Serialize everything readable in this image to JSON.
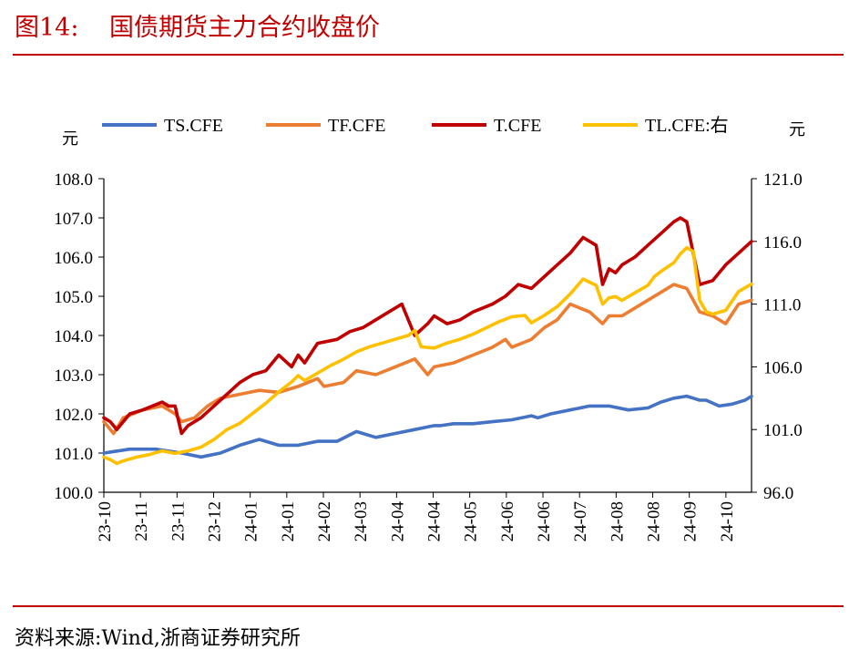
{
  "header": {
    "figure_number": "图14:",
    "title": "国债期货主力合约收盘价"
  },
  "footer": {
    "source": "资料来源:Wind,浙商证券研究所"
  },
  "colors": {
    "title_red": "#c00000",
    "TS": "#4472c4",
    "TF": "#ed7d31",
    "T": "#c00000",
    "TL": "#ffc000"
  },
  "chart_data": {
    "type": "line",
    "left_unit": "元",
    "right_unit": "元",
    "left_axis": {
      "ylim": [
        100.0,
        108.0
      ],
      "ticks": [
        "100.0",
        "101.0",
        "102.0",
        "103.0",
        "104.0",
        "105.0",
        "106.0",
        "107.0",
        "108.0"
      ]
    },
    "right_axis": {
      "ylim": [
        96.0,
        121.0
      ],
      "ticks": [
        "96.0",
        "101.0",
        "106.0",
        "111.0",
        "116.0",
        "121.0"
      ]
    },
    "x_tick_labels": [
      "23-10",
      "23-11",
      "23-11",
      "23-12",
      "24-01",
      "24-01",
      "24-02",
      "24-03",
      "24-04",
      "24-04",
      "24-05",
      "24-06",
      "24-06",
      "24-07",
      "24-08",
      "24-08",
      "24-09",
      "24-10"
    ],
    "legend": {
      "placement": "top",
      "entries": [
        "TS.CFE",
        "TF.CFE",
        "T.CFE",
        "TL.CFE:右"
      ]
    },
    "x_range": [
      0,
      100
    ],
    "series": [
      {
        "name": "TS.CFE",
        "key": "TS",
        "axis": "left",
        "x": [
          0,
          4,
          8,
          12,
          15,
          18,
          21,
          24,
          27,
          30,
          33,
          36,
          39,
          42,
          45,
          48,
          51,
          52,
          54,
          57,
          60,
          63,
          66,
          67,
          69,
          72,
          75,
          78,
          81,
          84,
          86,
          88,
          90,
          92,
          93,
          95,
          97,
          99,
          100
        ],
        "y": [
          101.0,
          101.1,
          101.1,
          101.0,
          100.9,
          101.0,
          101.2,
          101.35,
          101.2,
          101.2,
          101.3,
          101.3,
          101.55,
          101.4,
          101.5,
          101.6,
          101.7,
          101.7,
          101.75,
          101.75,
          101.8,
          101.85,
          101.95,
          101.9,
          102.0,
          102.1,
          102.2,
          102.2,
          102.1,
          102.15,
          102.3,
          102.4,
          102.45,
          102.35,
          102.35,
          102.2,
          102.25,
          102.35,
          102.45
        ]
      },
      {
        "name": "TF.CFE",
        "key": "TF",
        "axis": "left",
        "x": [
          0,
          1.5,
          3,
          6,
          9,
          11,
          12,
          14,
          16,
          18,
          21,
          24,
          27,
          30,
          33,
          34,
          37,
          39,
          42,
          45,
          48,
          50,
          51,
          54,
          57,
          60,
          62,
          63,
          66,
          68,
          70,
          72,
          75,
          77,
          78,
          80,
          82,
          84,
          86,
          88,
          90,
          92,
          94,
          96,
          98,
          100
        ],
        "y": [
          101.8,
          101.5,
          101.9,
          102.1,
          102.2,
          102.0,
          101.8,
          101.9,
          102.2,
          102.4,
          102.5,
          102.6,
          102.55,
          102.7,
          102.9,
          102.7,
          102.8,
          103.1,
          103.0,
          103.2,
          103.4,
          103.0,
          103.2,
          103.3,
          103.5,
          103.7,
          103.9,
          103.7,
          103.9,
          104.2,
          104.4,
          104.8,
          104.6,
          104.3,
          104.5,
          104.5,
          104.7,
          104.9,
          105.1,
          105.3,
          105.2,
          104.6,
          104.5,
          104.3,
          104.8,
          104.9
        ]
      },
      {
        "name": "T.CFE",
        "key": "T",
        "axis": "left",
        "x": [
          0,
          1,
          2,
          4,
          6,
          9,
          10,
          11,
          12,
          13,
          15,
          17,
          19,
          21,
          23,
          25,
          27,
          29,
          30,
          31,
          33,
          36,
          38,
          40,
          42,
          44,
          46,
          48,
          50,
          51,
          53,
          55,
          57,
          60,
          62,
          64,
          66,
          68,
          70,
          72,
          74,
          76,
          77,
          78,
          79,
          80,
          82,
          84,
          86,
          88,
          89,
          90,
          92,
          94,
          96,
          98,
          100
        ],
        "y": [
          101.9,
          101.8,
          101.6,
          102.0,
          102.1,
          102.3,
          102.2,
          102.2,
          101.5,
          101.7,
          101.9,
          102.2,
          102.5,
          102.8,
          103.0,
          103.1,
          103.5,
          103.2,
          103.5,
          103.3,
          103.8,
          103.9,
          104.1,
          104.2,
          104.4,
          104.6,
          104.8,
          104.0,
          104.3,
          104.5,
          104.3,
          104.4,
          104.6,
          104.8,
          105.0,
          105.3,
          105.2,
          105.5,
          105.8,
          106.1,
          106.5,
          106.3,
          105.3,
          105.7,
          105.6,
          105.8,
          106.0,
          106.3,
          106.6,
          106.9,
          107.0,
          106.9,
          105.3,
          105.4,
          105.8,
          106.1,
          106.4
        ]
      },
      {
        "name": "TL.CFE:右",
        "key": "TL",
        "axis": "right",
        "x": [
          0,
          1,
          2,
          3,
          5,
          7,
          9,
          11,
          13,
          15,
          17,
          18,
          19,
          21,
          23,
          25,
          27,
          29,
          30,
          31,
          33,
          35,
          37,
          39,
          41,
          43,
          45,
          47,
          48,
          49,
          51,
          53,
          55,
          57,
          59,
          61,
          63,
          65,
          66,
          68,
          70,
          72,
          74,
          76,
          77,
          78,
          79,
          80,
          82,
          84,
          85,
          86,
          88,
          89,
          90,
          91,
          92,
          93,
          94,
          96,
          98,
          99,
          100
        ],
        "y": [
          98.8,
          98.6,
          98.3,
          98.5,
          98.8,
          99.0,
          99.3,
          99.1,
          99.3,
          99.6,
          100.2,
          100.6,
          101.0,
          101.5,
          102.3,
          103.1,
          104.0,
          104.8,
          105.3,
          104.9,
          105.5,
          106.1,
          106.6,
          107.2,
          107.6,
          107.9,
          108.2,
          108.5,
          108.9,
          107.6,
          107.5,
          107.9,
          108.2,
          108.6,
          109.1,
          109.6,
          110.0,
          110.1,
          109.5,
          110.1,
          110.8,
          111.8,
          113.0,
          112.5,
          111.0,
          111.5,
          111.6,
          111.3,
          111.9,
          112.5,
          113.2,
          113.6,
          114.3,
          115.0,
          115.5,
          115.2,
          111.3,
          110.4,
          110.2,
          110.5,
          112.0,
          112.3,
          112.6
        ]
      }
    ]
  }
}
